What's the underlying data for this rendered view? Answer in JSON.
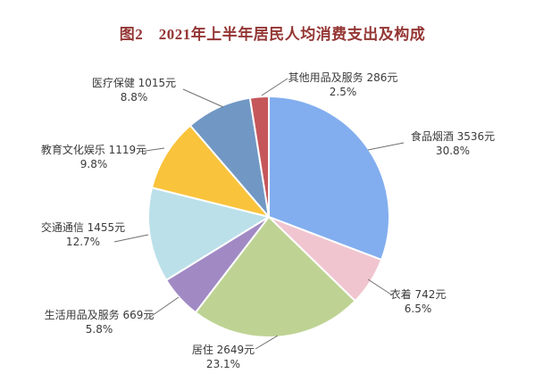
{
  "title": {
    "text": "图2　2021年上半年居民人均消费支出及构成"
  },
  "colors": {
    "title": "#943634",
    "label_text": "#3a3a3a",
    "leader_line": "#707070",
    "slice_border": "#ffffff"
  },
  "chart_data": {
    "type": "pie",
    "title": "图2　2021年上半年居民人均消费支出及构成",
    "unit": "元",
    "start_angle_deg": 0,
    "direction": "clockwise",
    "legend_position": "none",
    "categories": [
      "食品烟酒",
      "衣着",
      "居住",
      "生活用品及服务",
      "交通通信",
      "教育文化娱乐",
      "医疗保健",
      "其他用品及服务"
    ],
    "values": [
      3536,
      742,
      2649,
      669,
      1455,
      1119,
      1015,
      286
    ],
    "percents": [
      30.8,
      6.5,
      23.1,
      5.8,
      12.7,
      9.8,
      8.8,
      2.5
    ],
    "slices": [
      {
        "key": "food-tobacco-alcohol",
        "label": "食品烟酒",
        "value": 3536,
        "pct": 30.8,
        "color": "#82AEEF",
        "display": {
          "line1": "食品烟酒 3536元",
          "line2": "30.8%"
        }
      },
      {
        "key": "clothing",
        "label": "衣着",
        "value": 742,
        "pct": 6.5,
        "color": "#F0C5CF",
        "display": {
          "line1": "衣着 742元",
          "line2": "6.5%"
        }
      },
      {
        "key": "housing",
        "label": "居住",
        "value": 2649,
        "pct": 23.1,
        "color": "#BED393",
        "display": {
          "line1": "居住 2649元",
          "line2": "23.1%"
        }
      },
      {
        "key": "household-goods-services",
        "label": "生活用品及服务",
        "value": 669,
        "pct": 5.8,
        "color": "#A18AC4",
        "display": {
          "line1": "生活用品及服务 669元",
          "line2": "5.8%"
        }
      },
      {
        "key": "transport-communication",
        "label": "交通通信",
        "value": 1455,
        "pct": 12.7,
        "color": "#BBE0EA",
        "display": {
          "line1": "交通通信 1455元",
          "line2": "12.7%"
        }
      },
      {
        "key": "education-culture-entertainment",
        "label": "教育文化娱乐",
        "value": 1119,
        "pct": 9.8,
        "color": "#FAC33C",
        "display": {
          "line1": "教育文化娱乐 1119元",
          "line2": "9.8%"
        }
      },
      {
        "key": "healthcare",
        "label": "医疗保健",
        "value": 1015,
        "pct": 8.8,
        "color": "#7198C4",
        "display": {
          "line1": "医疗保健 1015元",
          "line2": "8.8%"
        }
      },
      {
        "key": "other-goods-services",
        "label": "其他用品及服务",
        "value": 286,
        "pct": 2.5,
        "color": "#C5575B",
        "display": {
          "line1": "其他用品及服务 286元",
          "line2": "2.5%"
        }
      }
    ]
  }
}
